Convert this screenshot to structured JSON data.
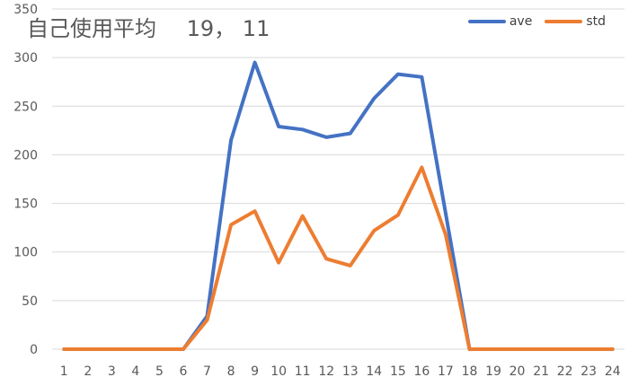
{
  "chart_data": {
    "type": "line",
    "title": "自己使用平均",
    "title_values": "19， 11",
    "categories": [
      "1",
      "2",
      "3",
      "4",
      "5",
      "6",
      "7",
      "8",
      "9",
      "10",
      "11",
      "12",
      "13",
      "14",
      "15",
      "16",
      "17",
      "18",
      "19",
      "20",
      "21",
      "22",
      "23",
      "24"
    ],
    "series": [
      {
        "name": "ave",
        "color": "#4472C4",
        "values": [
          0,
          0,
          0,
          0,
          0,
          0,
          34,
          215,
          295,
          229,
          226,
          218,
          222,
          258,
          283,
          280,
          140,
          0,
          0,
          0,
          0,
          0,
          0,
          0
        ]
      },
      {
        "name": "std",
        "color": "#ED7D31",
        "values": [
          0,
          0,
          0,
          0,
          0,
          0,
          30,
          128,
          142,
          89,
          137,
          93,
          86,
          122,
          138,
          187,
          118,
          0,
          0,
          0,
          0,
          0,
          0,
          0
        ]
      }
    ],
    "ylim": [
      0,
      350
    ],
    "yticks": [
      0,
      50,
      100,
      150,
      200,
      250,
      300,
      350
    ],
    "grid": true,
    "legend_position": "top-right",
    "xlabel": "",
    "ylabel": ""
  }
}
